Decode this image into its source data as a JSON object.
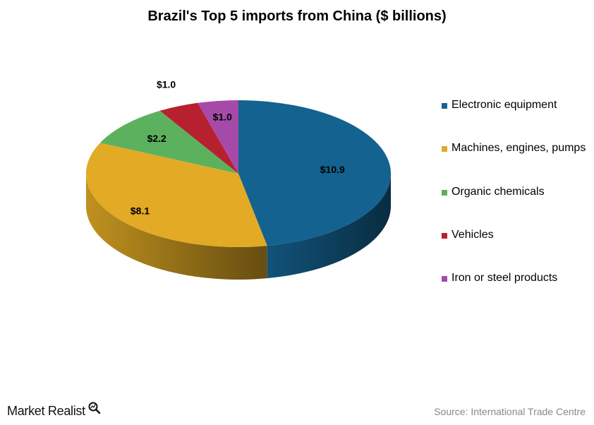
{
  "chart_data": {
    "type": "pie",
    "title": "Brazil's Top 5 imports from China ($ billions)",
    "categories": [
      "Electronic equipment",
      "Machines, engines, pumps",
      "Organic chemicals",
      "Vehicles",
      "Iron or steel products"
    ],
    "values": [
      10.9,
      8.1,
      2.2,
      1.0,
      1.0
    ],
    "data_labels": [
      "$10.9",
      "$8.1",
      "$2.2",
      "$1.0",
      "$1.0"
    ],
    "colors": [
      "#14628f",
      "#e2aa25",
      "#5cb15e",
      "#b7202e",
      "#a64aa9"
    ],
    "legend_position": "right",
    "style": "3d"
  },
  "footer": {
    "brand": "Market Realist",
    "brand_icon": "magnifier-icon",
    "source": "Source: International Trade Centre"
  }
}
